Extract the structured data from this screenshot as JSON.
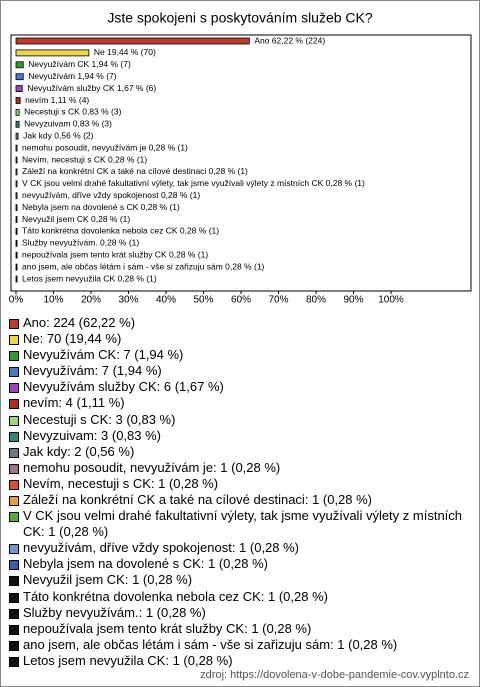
{
  "chart_data": {
    "type": "bar",
    "orientation": "horizontal",
    "title": "Jste spokojeni s poskytováním služeb CK?",
    "values": [
      62.22,
      19.44,
      1.94,
      1.94,
      1.67,
      1.11,
      0.83,
      0.83,
      0.56,
      0.28,
      0.28,
      0.28,
      0.28,
      0.28,
      0.28,
      0.28,
      0.28,
      0.28,
      0.28,
      0.28,
      0.28
    ],
    "value_labels": [
      "Ano 62,22 % (224)",
      "Ne 19,44 % (70)",
      "Nevyužívám CK 1,94 % (7)",
      "Nevyužívám 1,94 % (7)",
      "Nevyužívám služby CK 1,67 % (6)",
      "nevím 1,11 % (4)",
      "Necestuji s CK 0,83 % (3)",
      "Nevyzuivam 0,83 % (3)",
      "Jak kdy 0,56 % (2)",
      "nemohu posoudit, nevyužívám je 0,28 % (1)",
      "Nevím, necestuji s CK 0,28 % (1)",
      "Záleží na konkrétní CK a také na cílové destinaci 0,28 % (1)",
      "V CK jsou velmi drahé fakultativní výlety, tak jsme využívali výlety z místních CK 0,28 % (1)",
      "nevyužívám, dříve vždy spokojenost 0,28 % (1)",
      "Nebyla jsem na dovolené s CK 0,28 % (1)",
      "Nevyužil jsem CK 0,28 % (1)",
      "Táto konkrétna dovolenka nebola cez CK 0,28 % (1)",
      "Služby nevyužívám. 0,28 % (1)",
      "nepoužívala jsem tento krát služby CK 0,28 % (1)",
      "ano jsem, ale občas létám i sám - vše si zařizuju sám 0,28 % (1)",
      "Letos jsem nevyužila CK 0,28 % (1)"
    ],
    "legend_labels": [
      "Ano: 224 (62,22 %)",
      "Ne: 70 (19,44 %)",
      "Nevyužívám CK: 7 (1,94 %)",
      "Nevyužívám: 7 (1,94 %)",
      "Nevyužívám služby CK: 6 (1,67 %)",
      "nevím: 4 (1,11 %)",
      "Necestuji s CK: 3 (0,83 %)",
      "Nevyzuivam: 3 (0,83 %)",
      "Jak kdy: 2 (0,56 %)",
      "nemohu posoudit, nevyužívám je: 1 (0,28 %)",
      "Nevím, necestuji s CK: 1 (0,28 %)",
      "Záleží na konkrétní CK a také na cílové destinaci: 1 (0,28 %)",
      "V CK jsou velmi drahé fakultativní výlety, tak jsme využívali výlety z místních CK: 1 (0,28 %)",
      "nevyužívám, dříve vždy spokojenost: 1 (0,28 %)",
      "Nebyla jsem na dovolené s CK: 1 (0,28 %)",
      "Nevyužil jsem CK: 1 (0,28 %)",
      "Táto konkrétna dovolenka nebola cez CK: 1 (0,28 %)",
      "Služby nevyužívám.: 1 (0,28 %)",
      "nepoužívala jsem tento krát služby CK: 1 (0,28 %)",
      "ano jsem, ale občas létám i sám - vše si zařizuju sám: 1 (0,28 %)",
      "Letos jsem nevyužila CK: 1 (0,28 %)"
    ],
    "colors": [
      "#c0392b",
      "#f2d544",
      "#2ca02c",
      "#4a78c8",
      "#a040c0",
      "#b03020",
      "#98d878",
      "#2a8a7a",
      "#6a7d8e",
      "#a07090",
      "#d85030",
      "#e8a030",
      "#58b030",
      "#7098d8",
      "#3060b0",
      "#111111",
      "#111111",
      "#111111",
      "#111111",
      "#111111",
      "#111111"
    ],
    "xlim": [
      0,
      100
    ],
    "xticks": [
      {
        "value": 0,
        "label": "0%"
      },
      {
        "value": 10,
        "label": "10%"
      },
      {
        "value": 20,
        "label": "20%"
      },
      {
        "value": 30,
        "label": "30%"
      },
      {
        "value": 40,
        "label": "40%"
      },
      {
        "value": 50,
        "label": "50%"
      },
      {
        "value": 60,
        "label": "60%"
      },
      {
        "value": 70,
        "label": "70%"
      },
      {
        "value": 80,
        "label": "80%"
      },
      {
        "value": 90,
        "label": "90%"
      },
      {
        "value": 100,
        "label": "100%"
      }
    ],
    "source": "zdroj: https://dovolena-v-dobe-pandemie-cov.vyplnto.cz"
  }
}
